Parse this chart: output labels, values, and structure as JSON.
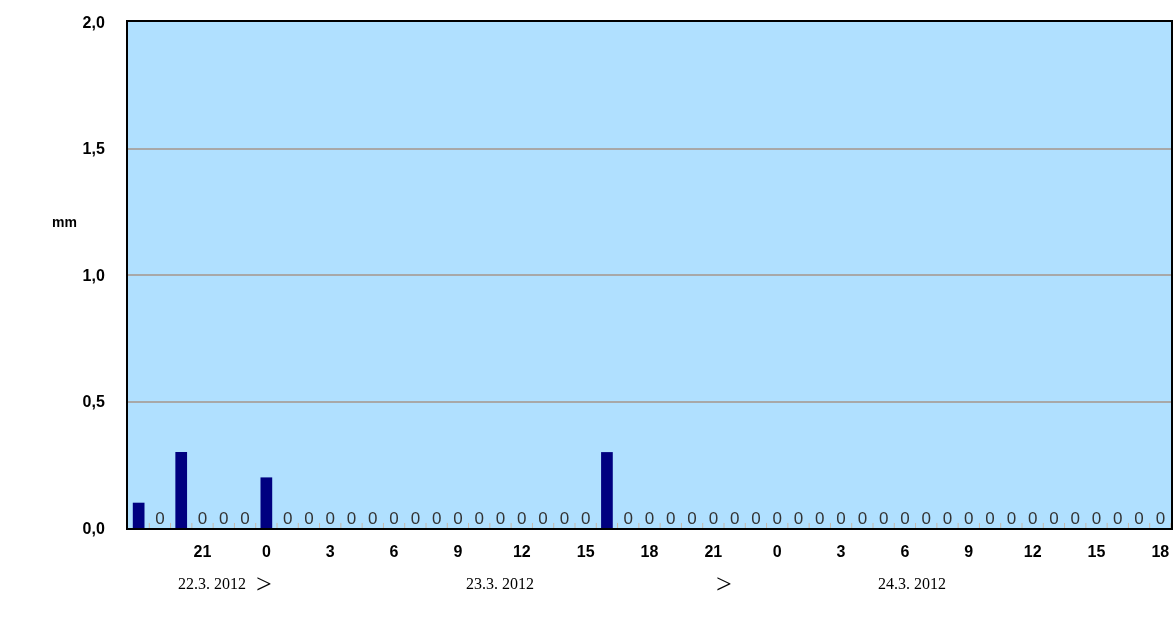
{
  "chart_data": {
    "type": "bar",
    "ylabel": "mm",
    "categories": [
      null,
      null,
      null,
      "21",
      null,
      null,
      "0",
      null,
      null,
      "3",
      null,
      null,
      "6",
      null,
      null,
      "9",
      null,
      null,
      "12",
      null,
      null,
      "15",
      null,
      null,
      "18",
      null,
      null,
      "21",
      null,
      null,
      "0",
      null,
      null,
      "3",
      null,
      null,
      "6",
      null,
      null,
      "9",
      null,
      null,
      "12",
      null,
      null,
      "15",
      null,
      null,
      "18"
    ],
    "values": [
      0.1,
      0,
      0.3,
      0,
      0,
      0,
      0.2,
      0,
      0,
      0,
      0,
      0,
      0,
      0,
      0,
      0,
      0,
      0,
      0,
      0,
      0,
      0,
      0.3,
      0,
      0,
      0,
      0,
      0,
      0,
      0,
      0,
      0,
      0,
      0,
      0,
      0,
      0,
      0,
      0,
      0,
      0,
      0,
      0,
      0,
      0,
      0,
      0,
      0,
      0
    ],
    "value_labels": [
      null,
      "0",
      null,
      "0",
      "0",
      "0",
      null,
      "0",
      "0",
      "0",
      "0",
      "0",
      "0",
      "0",
      "0",
      "0",
      "0",
      "0",
      "0",
      "0",
      "0",
      "0",
      null,
      "0",
      "0",
      "0",
      "0",
      "0",
      "0",
      "0",
      "0",
      "0",
      "0",
      "0",
      "0",
      "0",
      "0",
      "0",
      "0",
      "0",
      "0",
      "0",
      "0",
      "0",
      "0",
      "0",
      "0",
      "0",
      "0"
    ],
    "color": "#000080",
    "ylim": [
      0,
      2
    ],
    "yticks": [
      {
        "value": 0,
        "label": "0,0"
      },
      {
        "value": 0.5,
        "label": "0,5"
      },
      {
        "value": 1,
        "label": "1,0"
      },
      {
        "value": 1.5,
        "label": "1,5"
      },
      {
        "value": 2,
        "label": "2,0"
      }
    ],
    "grid": "y",
    "legend": false,
    "annotations": [
      "22.3. 2012",
      ">",
      "23.3. 2012",
      ">",
      "24.3. 2012"
    ]
  }
}
